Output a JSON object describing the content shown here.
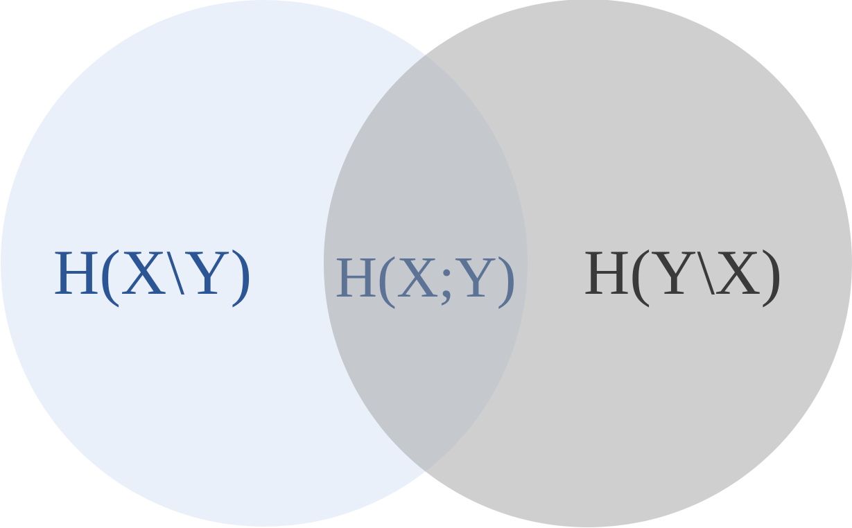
{
  "venn": {
    "left_set": {
      "label": "H(X\\Y)",
      "fill": "#EAF0F9",
      "label_color": "#2B5594"
    },
    "right_set": {
      "label": "H(Y\\X)",
      "fill": "#CFCFCF",
      "label_color": "#3A3A3A"
    },
    "intersection": {
      "label": "H(X;Y)",
      "fill": "#C5C8CD",
      "label_color": "#5C7396"
    }
  }
}
